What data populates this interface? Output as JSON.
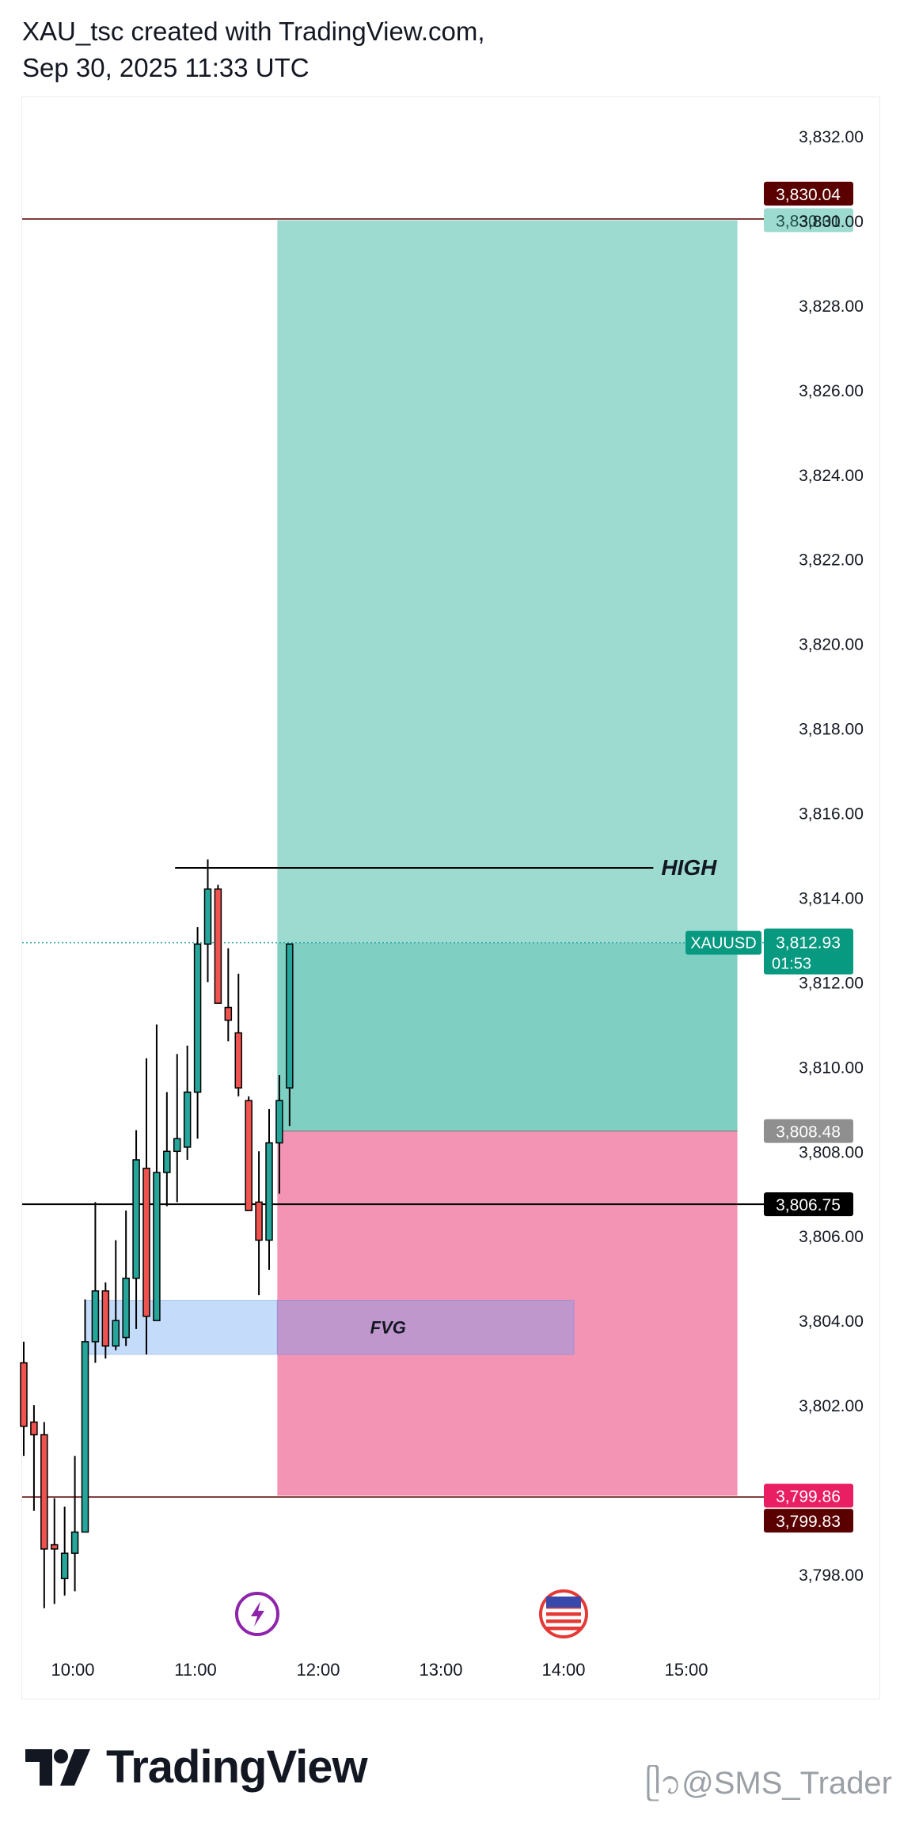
{
  "header": {
    "line1": "XAU_tsc created with TradingView.com,",
    "line2": "Sep 30, 2025 11:33 UTC"
  },
  "footer": {
    "logo_text": "TradingView",
    "watermark": "@SMS_Trader"
  },
  "colors": {
    "up": "#26a69a",
    "down": "#ef5350",
    "target_zone": "#9ddbd1",
    "target_zone_overlap": "#7fd0c3",
    "stop_zone": "#f494b4",
    "fvg": "#c4dcfa",
    "fvg_overlap": "#c097cd",
    "level_dark": "#5a0000",
    "level_black": "#000000"
  },
  "chart_data": {
    "type": "candlestick",
    "symbol": "XAUUSD",
    "y_axis": {
      "min": 3797,
      "max": 3833,
      "ticks": [
        "3,798.00",
        "3,802.00",
        "3,804.00",
        "3,806.00",
        "3,808.00",
        "3,810.00",
        "3,812.00",
        "3,814.00",
        "3,816.00",
        "3,818.00",
        "3,820.00",
        "3,822.00",
        "3,824.00",
        "3,826.00",
        "3,828.00",
        "3,830.00",
        "3,832.00"
      ],
      "tick_values": [
        3798,
        3802,
        3804,
        3806,
        3808,
        3810,
        3812,
        3814,
        3816,
        3818,
        3820,
        3822,
        3824,
        3826,
        3828,
        3830,
        3832
      ]
    },
    "x_axis": {
      "labels": [
        "10:00",
        "11:00",
        "12:00",
        "13:00",
        "14:00",
        "15:00"
      ],
      "label_minutes": [
        600,
        660,
        720,
        780,
        840,
        900
      ],
      "range_minutes": [
        576,
        936
      ]
    },
    "candles": [
      {
        "t": 576,
        "o": 3803.0,
        "h": 3803.5,
        "l": 3800.8,
        "c": 3801.5
      },
      {
        "t": 581,
        "o": 3801.6,
        "h": 3802.0,
        "l": 3799.5,
        "c": 3801.3
      },
      {
        "t": 586,
        "o": 3801.3,
        "h": 3801.6,
        "l": 3797.2,
        "c": 3798.6
      },
      {
        "t": 591,
        "o": 3798.7,
        "h": 3799.8,
        "l": 3797.3,
        "c": 3798.6
      },
      {
        "t": 596,
        "o": 3797.9,
        "h": 3799.6,
        "l": 3797.5,
        "c": 3798.5
      },
      {
        "t": 601,
        "o": 3798.5,
        "h": 3800.8,
        "l": 3797.6,
        "c": 3799.0
      },
      {
        "t": 606,
        "o": 3799.0,
        "h": 3804.5,
        "l": 3799.0,
        "c": 3803.5
      },
      {
        "t": 611,
        "o": 3803.5,
        "h": 3806.8,
        "l": 3803.0,
        "c": 3804.7
      },
      {
        "t": 616,
        "o": 3804.7,
        "h": 3804.9,
        "l": 3803.1,
        "c": 3803.4
      },
      {
        "t": 621,
        "o": 3803.4,
        "h": 3805.9,
        "l": 3803.3,
        "c": 3804.0
      },
      {
        "t": 626,
        "o": 3803.6,
        "h": 3806.6,
        "l": 3803.4,
        "c": 3805.0
      },
      {
        "t": 631,
        "o": 3805.0,
        "h": 3808.5,
        "l": 3803.8,
        "c": 3807.8
      },
      {
        "t": 636,
        "o": 3807.6,
        "h": 3810.2,
        "l": 3803.2,
        "c": 3804.1
      },
      {
        "t": 641,
        "o": 3804.0,
        "h": 3811.0,
        "l": 3804.0,
        "c": 3807.5
      },
      {
        "t": 646,
        "o": 3807.5,
        "h": 3809.4,
        "l": 3806.7,
        "c": 3808.0
      },
      {
        "t": 651,
        "o": 3808.0,
        "h": 3810.3,
        "l": 3806.8,
        "c": 3808.3
      },
      {
        "t": 656,
        "o": 3808.1,
        "h": 3810.5,
        "l": 3807.8,
        "c": 3809.4
      },
      {
        "t": 661,
        "o": 3809.4,
        "h": 3813.3,
        "l": 3808.3,
        "c": 3812.9
      },
      {
        "t": 666,
        "o": 3812.9,
        "h": 3814.9,
        "l": 3812.0,
        "c": 3814.2
      },
      {
        "t": 671,
        "o": 3814.2,
        "h": 3814.3,
        "l": 3811.5,
        "c": 3811.5
      },
      {
        "t": 676,
        "o": 3811.4,
        "h": 3812.8,
        "l": 3810.6,
        "c": 3811.1
      },
      {
        "t": 681,
        "o": 3810.8,
        "h": 3812.2,
        "l": 3809.3,
        "c": 3809.5
      },
      {
        "t": 686,
        "o": 3809.2,
        "h": 3809.3,
        "l": 3806.6,
        "c": 3806.6
      },
      {
        "t": 691,
        "o": 3806.8,
        "h": 3808.0,
        "l": 3804.6,
        "c": 3805.9
      },
      {
        "t": 696,
        "o": 3805.9,
        "h": 3809.0,
        "l": 3805.2,
        "c": 3808.2
      },
      {
        "t": 701,
        "o": 3808.2,
        "h": 3809.8,
        "l": 3807.0,
        "c": 3809.2
      },
      {
        "t": 706,
        "o": 3809.5,
        "h": 3812.9,
        "l": 3808.6,
        "c": 3812.9
      }
    ],
    "position": {
      "start_minutes": 700,
      "end_minutes": 925,
      "entry": 3808.48,
      "target": 3830.01,
      "stop": 3799.86,
      "entry_label": "3,808.48",
      "target_label": "3,830.01",
      "stop_label": "3,799.86"
    },
    "fvg": {
      "start_minutes": 606,
      "end_minutes": 845,
      "top": 3804.48,
      "bottom": 3803.2,
      "label": "FVG"
    },
    "levels": [
      {
        "value": 3830.04,
        "label": "3,830.04",
        "style": "dark"
      },
      {
        "value": 3806.75,
        "label": "3,806.75",
        "style": "black"
      },
      {
        "value": 3799.83,
        "label": "3,799.83",
        "style": "dark"
      }
    ],
    "high_line": {
      "value": 3814.7,
      "start_minutes": 650,
      "end_minutes": 880,
      "label": "HIGH"
    },
    "current_price": {
      "value": 3812.93,
      "label": "3,812.93",
      "countdown": "01:53",
      "symbol": "XAUUSD"
    },
    "events": [
      {
        "type": "lightning",
        "minutes": 706
      },
      {
        "type": "us-flag",
        "minutes": 840
      }
    ]
  }
}
